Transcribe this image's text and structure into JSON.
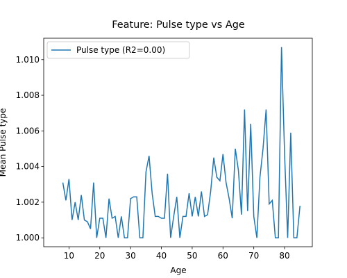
{
  "chart_data": {
    "type": "line",
    "title": "Feature: Pulse type vs Age",
    "xlabel": "Age",
    "ylabel": "Mean Pulse type",
    "x": [
      8,
      9,
      10,
      11,
      12,
      13,
      14,
      15,
      16,
      17,
      18,
      19,
      20,
      21,
      22,
      23,
      24,
      25,
      26,
      27,
      28,
      29,
      30,
      31,
      32,
      33,
      34,
      35,
      36,
      37,
      38,
      39,
      40,
      41,
      42,
      43,
      44,
      45,
      46,
      47,
      48,
      49,
      50,
      51,
      52,
      53,
      54,
      55,
      56,
      57,
      58,
      59,
      60,
      61,
      62,
      63,
      64,
      65,
      66,
      67,
      68,
      69,
      70,
      71,
      72,
      73,
      74,
      75,
      76,
      77,
      78,
      79,
      80,
      81,
      82,
      83,
      84,
      85
    ],
    "series": [
      {
        "name": "Pulse type (R2=0.00)",
        "color": "#1f77b4",
        "values": [
          1.0031,
          1.0021,
          1.0033,
          1.001,
          1.002,
          1.001,
          1.0024,
          1.001,
          1.0009,
          1.0005,
          1.0031,
          1.0,
          1.0011,
          1.0011,
          1.0,
          1.0022,
          1.0011,
          1.0012,
          1.0,
          1.0012,
          1.0,
          1.0,
          1.0022,
          1.0023,
          1.0023,
          1.0,
          1.0,
          1.0037,
          1.0046,
          1.0025,
          1.0012,
          1.0012,
          1.0011,
          1.0011,
          1.0036,
          1.0,
          1.0012,
          1.0023,
          1.0,
          1.0012,
          1.0012,
          1.0025,
          1.0012,
          1.0023,
          1.0012,
          1.0026,
          1.0012,
          1.0013,
          1.0026,
          1.0045,
          1.0034,
          1.0032,
          1.0047,
          1.0031,
          1.0022,
          1.0011,
          1.005,
          1.0038,
          1.0013,
          1.0072,
          1.0015,
          1.0064,
          1.0012,
          1.0,
          1.0034,
          1.005,
          1.0072,
          1.0019,
          1.0021,
          1.0,
          1.0,
          1.0107,
          1.0047,
          1.0,
          1.0059,
          1.0,
          1.0,
          1.0018
        ]
      }
    ],
    "xlim": [
      1.8,
      89.0
    ],
    "ylim": [
      0.9995,
      1.0112
    ],
    "xticks": [
      10,
      20,
      30,
      40,
      50,
      60,
      70,
      80
    ],
    "yticks": [
      {
        "value": 1.0,
        "label": "1.000"
      },
      {
        "value": 1.002,
        "label": "1.002"
      },
      {
        "value": 1.004,
        "label": "1.004"
      },
      {
        "value": 1.006,
        "label": "1.006"
      },
      {
        "value": 1.008,
        "label": "1.008"
      },
      {
        "value": 1.01,
        "label": "1.010"
      }
    ],
    "legend": "upper left"
  }
}
